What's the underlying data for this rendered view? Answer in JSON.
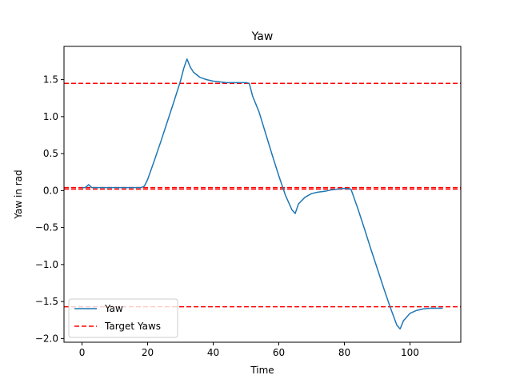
{
  "chart_data": {
    "type": "line",
    "title": "Yaw",
    "xlabel": "Time",
    "ylabel": "Yaw in rad",
    "xlim": [
      -5.5,
      115.5
    ],
    "ylim": [
      -2.05,
      1.95
    ],
    "xticks": [
      0,
      20,
      40,
      60,
      80,
      100
    ],
    "xtick_labels": [
      "0",
      "20",
      "40",
      "60",
      "80",
      "100"
    ],
    "yticks": [
      -2.0,
      -1.5,
      -1.0,
      -0.5,
      0.0,
      0.5,
      1.0,
      1.5
    ],
    "ytick_labels": [
      "−2.0",
      "−1.5",
      "−1.0",
      "−0.5",
      "0.0",
      "0.5",
      "1.0",
      "1.5"
    ],
    "grid": false,
    "legend_position": "lower-left",
    "series": [
      {
        "name": "Yaw",
        "style": "solid",
        "color": "#1f77b4",
        "x": [
          0,
          1,
          2,
          3,
          4,
          6,
          8,
          10,
          12,
          14,
          16,
          18,
          19,
          20,
          22,
          24,
          26,
          28,
          30,
          31,
          32,
          33,
          34,
          36,
          38,
          40,
          42,
          44,
          46,
          48,
          50,
          51,
          52,
          54,
          56,
          58,
          60,
          62,
          64,
          65,
          66,
          68,
          70,
          72,
          74,
          76,
          78,
          80,
          82,
          84,
          86,
          88,
          90,
          92,
          94,
          96,
          97,
          98,
          100,
          102,
          104,
          106,
          108,
          110
        ],
        "y": [
          0.04,
          0.04,
          0.08,
          0.04,
          0.04,
          0.04,
          0.04,
          0.04,
          0.04,
          0.04,
          0.04,
          0.04,
          0.06,
          0.15,
          0.4,
          0.66,
          0.93,
          1.2,
          1.48,
          1.65,
          1.78,
          1.67,
          1.6,
          1.53,
          1.5,
          1.48,
          1.47,
          1.46,
          1.46,
          1.46,
          1.46,
          1.45,
          1.28,
          1.06,
          0.77,
          0.48,
          0.2,
          -0.06,
          -0.26,
          -0.31,
          -0.18,
          -0.09,
          -0.04,
          -0.02,
          -0.01,
          0.01,
          0.02,
          0.03,
          0.02,
          -0.23,
          -0.5,
          -0.78,
          -1.05,
          -1.32,
          -1.58,
          -1.82,
          -1.87,
          -1.76,
          -1.66,
          -1.62,
          -1.6,
          -1.59,
          -1.59,
          -1.59
        ]
      },
      {
        "name": "Target Yaws",
        "style": "dashed",
        "color": "#ff0000",
        "hlines": [
          1.45,
          0.04,
          0.02,
          -1.57
        ]
      }
    ]
  }
}
